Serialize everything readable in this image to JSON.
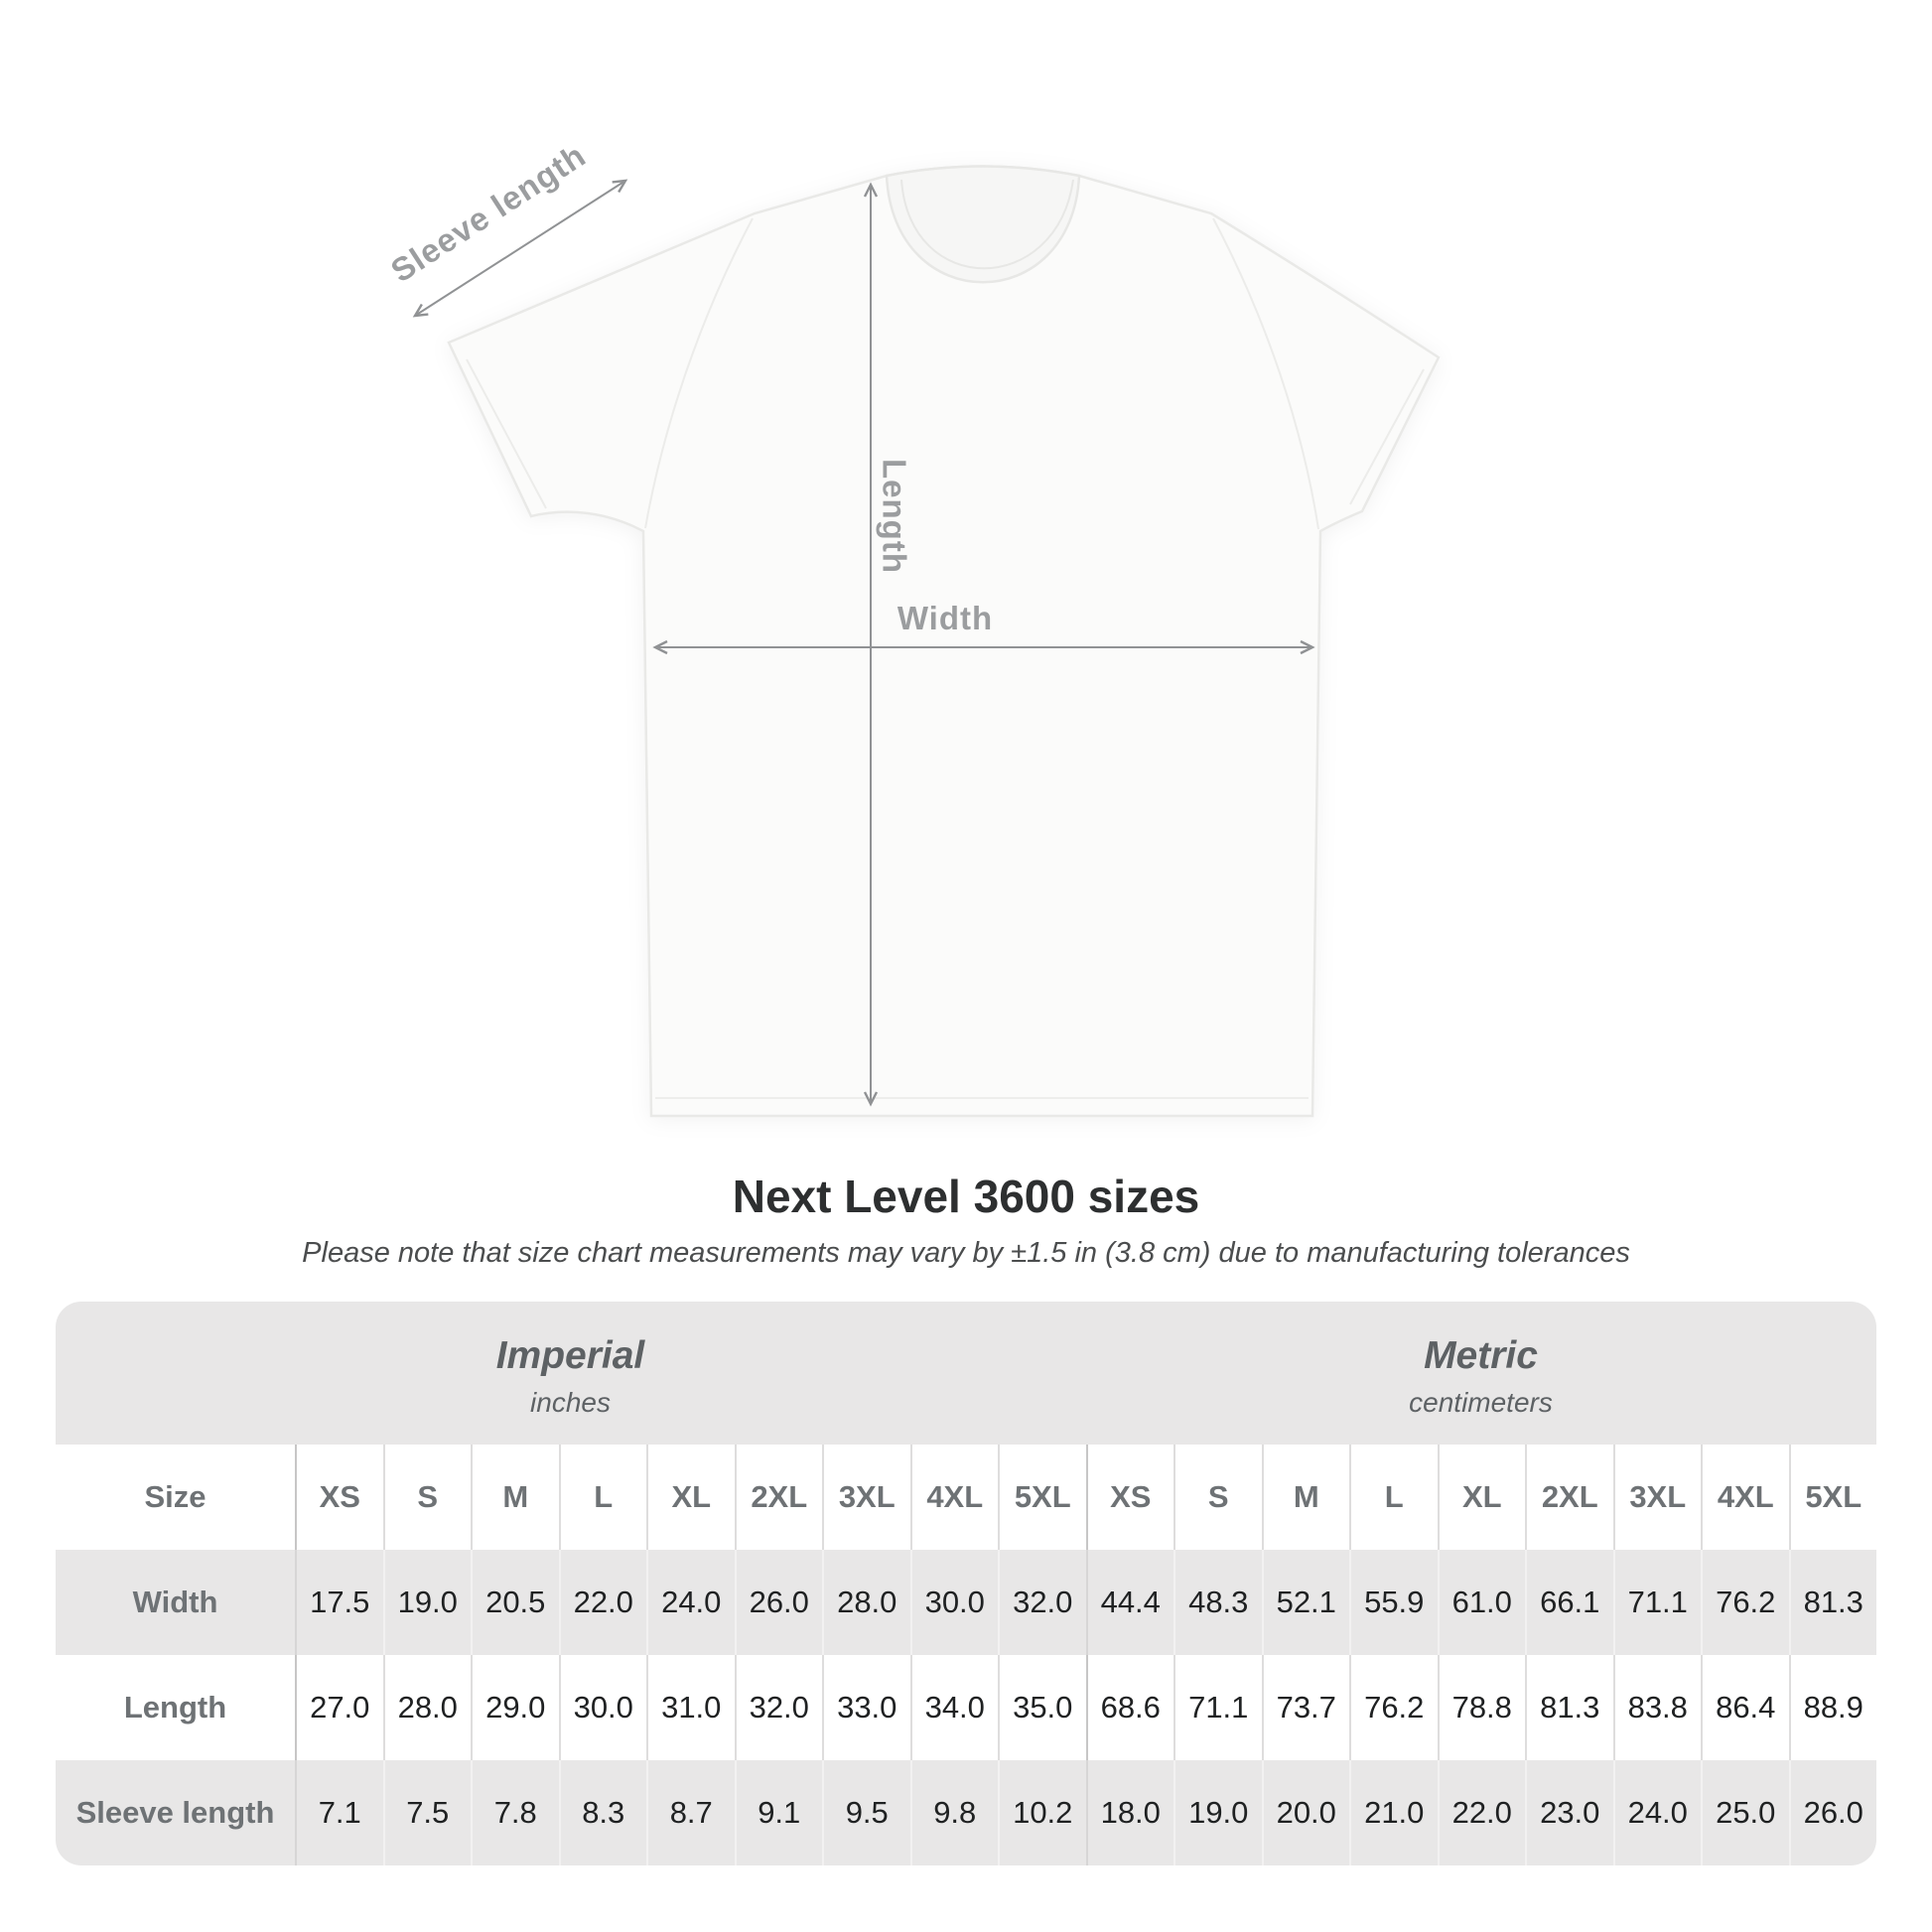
{
  "diagram": {
    "sleeve_label": "Sleeve length",
    "length_label": "Length",
    "width_label": "Width",
    "line_color": "#909294",
    "label_color": "#9b9d9f",
    "shirt_fill": "#fbfbfa",
    "shirt_outline": "#e9e9e7"
  },
  "note": "Please note that size chart measurements may vary by ±1.5 in (3.8 cm) due to manufacturing tolerances",
  "chart_data": {
    "type": "table",
    "title": "Next Level 3600 sizes",
    "unit_groups": [
      {
        "label": "Imperial",
        "sublabel": "inches"
      },
      {
        "label": "Metric",
        "sublabel": "centimeters"
      }
    ],
    "size_header_label": "Size",
    "sizes": [
      "XS",
      "S",
      "M",
      "L",
      "XL",
      "2XL",
      "3XL",
      "4XL",
      "5XL"
    ],
    "rows": [
      {
        "label": "Width",
        "imperial": [
          "17.5",
          "19.0",
          "20.5",
          "22.0",
          "24.0",
          "26.0",
          "28.0",
          "30.0",
          "32.0"
        ],
        "metric": [
          "44.4",
          "48.3",
          "52.1",
          "55.9",
          "61.0",
          "66.1",
          "71.1",
          "76.2",
          "81.3"
        ]
      },
      {
        "label": "Length",
        "imperial": [
          "27.0",
          "28.0",
          "29.0",
          "30.0",
          "31.0",
          "32.0",
          "33.0",
          "34.0",
          "35.0"
        ],
        "metric": [
          "68.6",
          "71.1",
          "73.7",
          "76.2",
          "78.8",
          "81.3",
          "83.8",
          "86.4",
          "88.9"
        ]
      },
      {
        "label": "Sleeve length",
        "imperial": [
          "7.1",
          "7.5",
          "7.8",
          "8.3",
          "8.7",
          "9.1",
          "9.5",
          "9.8",
          "10.2"
        ],
        "metric": [
          "18.0",
          "19.0",
          "20.0",
          "21.0",
          "22.0",
          "23.0",
          "24.0",
          "25.0",
          "26.0"
        ]
      }
    ],
    "layout": {
      "grid": "off",
      "legend": "none",
      "tolerance_note_shown": true
    }
  },
  "colors": {
    "table_background": "#e8e7e7",
    "row_white": "#ffffff",
    "data_text": "#1f2122",
    "label_text": "#6e7275",
    "title_text": "#2d2f30"
  }
}
